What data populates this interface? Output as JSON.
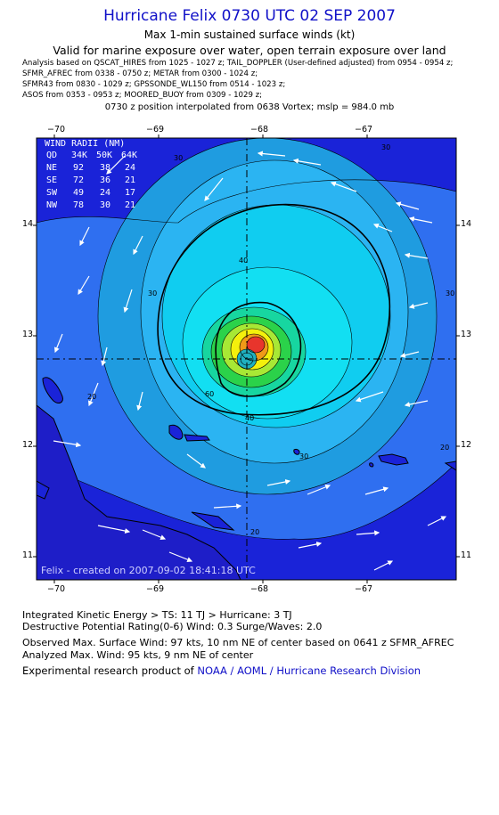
{
  "title": "Hurricane Felix 0730 UTC 02 SEP 2007",
  "subtitle1": "Max 1-min sustained surface winds (kt)",
  "subtitle2": "Valid for marine exposure over water, open terrain exposure over land",
  "analysis_lines": [
    "Analysis based on  QSCAT_HIRES from 1025 - 1027 z;  TAIL_DOPPLER (User-defined adjusted) from 0954 - 0954 z;",
    "SFMR_AFREC from 0338 - 0750 z;  METAR from 0300 - 1024 z;",
    "SFMR43 from 0830 - 1029 z;  GPSSONDE_WL150 from 0514 - 1023 z;",
    "ASOS from 0353 - 0953 z;  MOORED_BUOY from 0309 - 1029 z;"
  ],
  "position_note": "0730 z position interpolated from 0638 Vortex; mslp = 984.0 mb",
  "x_ticks": [
    "−70",
    "−69",
    "−68",
    "−67"
  ],
  "y_ticks": [
    "14",
    "13",
    "12",
    "11"
  ],
  "wind_radii": {
    "title": "WIND RADII (NM)",
    "header": [
      "QD",
      "34K",
      "50K",
      "64K"
    ],
    "rows": [
      [
        "NE",
        "92",
        "38",
        "24"
      ],
      [
        "SE",
        "72",
        "36",
        "21"
      ],
      [
        "SW",
        "49",
        "24",
        "17"
      ],
      [
        "NW",
        "78",
        "30",
        "21"
      ]
    ]
  },
  "contour_labels": [
    "30",
    "40",
    "30",
    "30",
    "20",
    "40",
    "60",
    "30",
    "20",
    "20",
    "30"
  ],
  "credit": "Felix - created on 2007-09-02 18:41:18 UTC",
  "footer": {
    "ike": "Integrated Kinetic Energy > TS: 11 TJ   > Hurricane: 3 TJ",
    "dpr": "Destructive Potential Rating(0-6)   Wind: 0.3 Surge/Waves: 2.0",
    "observed": "Observed Max. Surface Wind: 97 kts, 10 nm NE of center based on 0641 z SFMR_AFREC",
    "analyzed": "Analyzed Max. Wind: 95 kts, 9 nm NE of center",
    "product_prefix": "Experimental research product of ",
    "product_link": "NOAA / AOML / Hurricane Research Division"
  },
  "colors": {
    "title": "#1010c8",
    "deep_blue": "#1a23d8",
    "blue": "#2f6ff0",
    "light_blue": "#29a9f2",
    "cyan": "#0fd3f0",
    "green": "#2bd24a",
    "yellow": "#f4f00c",
    "red": "#e8352c"
  }
}
